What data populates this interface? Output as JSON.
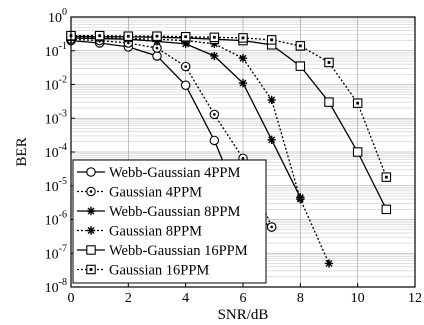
{
  "chart_data": {
    "type": "line",
    "title": "",
    "xlabel": "SNR/dB",
    "ylabel": "BER",
    "xlim": [
      0,
      12
    ],
    "ylim": [
      1e-08,
      1
    ],
    "y_scale": "log",
    "grid": true,
    "legend_position": "bottom-left",
    "x_ticks": [
      "0",
      "2",
      "4",
      "6",
      "8",
      "10",
      "12"
    ],
    "y_ticks": [
      {
        "base": "10",
        "exp": "0"
      },
      {
        "base": "10",
        "exp": "-1"
      },
      {
        "base": "10",
        "exp": "-2"
      },
      {
        "base": "10",
        "exp": "-3"
      },
      {
        "base": "10",
        "exp": "-4"
      },
      {
        "base": "10",
        "exp": "-5"
      },
      {
        "base": "10",
        "exp": "-6"
      },
      {
        "base": "10",
        "exp": "-7"
      },
      {
        "base": "10",
        "exp": "-8"
      }
    ],
    "series": [
      {
        "name": "Webb-Gaussian 4PPM",
        "marker": "circle",
        "line": "solid",
        "x": [
          0,
          1,
          2,
          3,
          4,
          5,
          6,
          7
        ],
        "y": [
          0.2,
          0.17,
          0.13,
          0.07,
          0.0095,
          0.00022,
          2e-06,
          6e-07
        ]
      },
      {
        "name": "Gaussian 4PPM",
        "marker": "circle-dot",
        "line": "dotted",
        "x": [
          0,
          1,
          2,
          3,
          4,
          5,
          6,
          7
        ],
        "y": [
          0.22,
          0.2,
          0.17,
          0.12,
          0.034,
          0.0013,
          6.5e-05,
          6e-07
        ]
      },
      {
        "name": "Webb-Gaussian 8PPM",
        "marker": "star",
        "line": "solid",
        "x": [
          0,
          1,
          2,
          3,
          4,
          5,
          6,
          7,
          8
        ],
        "y": [
          0.24,
          0.23,
          0.22,
          0.19,
          0.16,
          0.07,
          0.011,
          0.00023,
          4.5e-06
        ]
      },
      {
        "name": "Gaussian 8PPM",
        "marker": "star",
        "line": "dotted",
        "x": [
          0,
          1,
          2,
          3,
          4,
          5,
          6,
          7,
          8,
          9
        ],
        "y": [
          0.25,
          0.24,
          0.23,
          0.22,
          0.2,
          0.16,
          0.06,
          0.0035,
          4e-06,
          5e-08
        ]
      },
      {
        "name": "Webb-Gaussian 16PPM",
        "marker": "square",
        "line": "solid",
        "x": [
          0,
          1,
          2,
          3,
          4,
          5,
          6,
          7,
          8,
          9,
          10,
          11
        ],
        "y": [
          0.27,
          0.26,
          0.26,
          0.25,
          0.24,
          0.22,
          0.2,
          0.15,
          0.035,
          0.003,
          0.0001,
          2e-06
        ]
      },
      {
        "name": "Gaussian 16PPM",
        "marker": "square-dot",
        "line": "dotted",
        "x": [
          0,
          1,
          2,
          3,
          4,
          5,
          6,
          7,
          8,
          9,
          10,
          11
        ],
        "y": [
          0.28,
          0.28,
          0.27,
          0.27,
          0.26,
          0.25,
          0.24,
          0.21,
          0.14,
          0.045,
          0.0028,
          1.8e-05
        ]
      }
    ]
  }
}
